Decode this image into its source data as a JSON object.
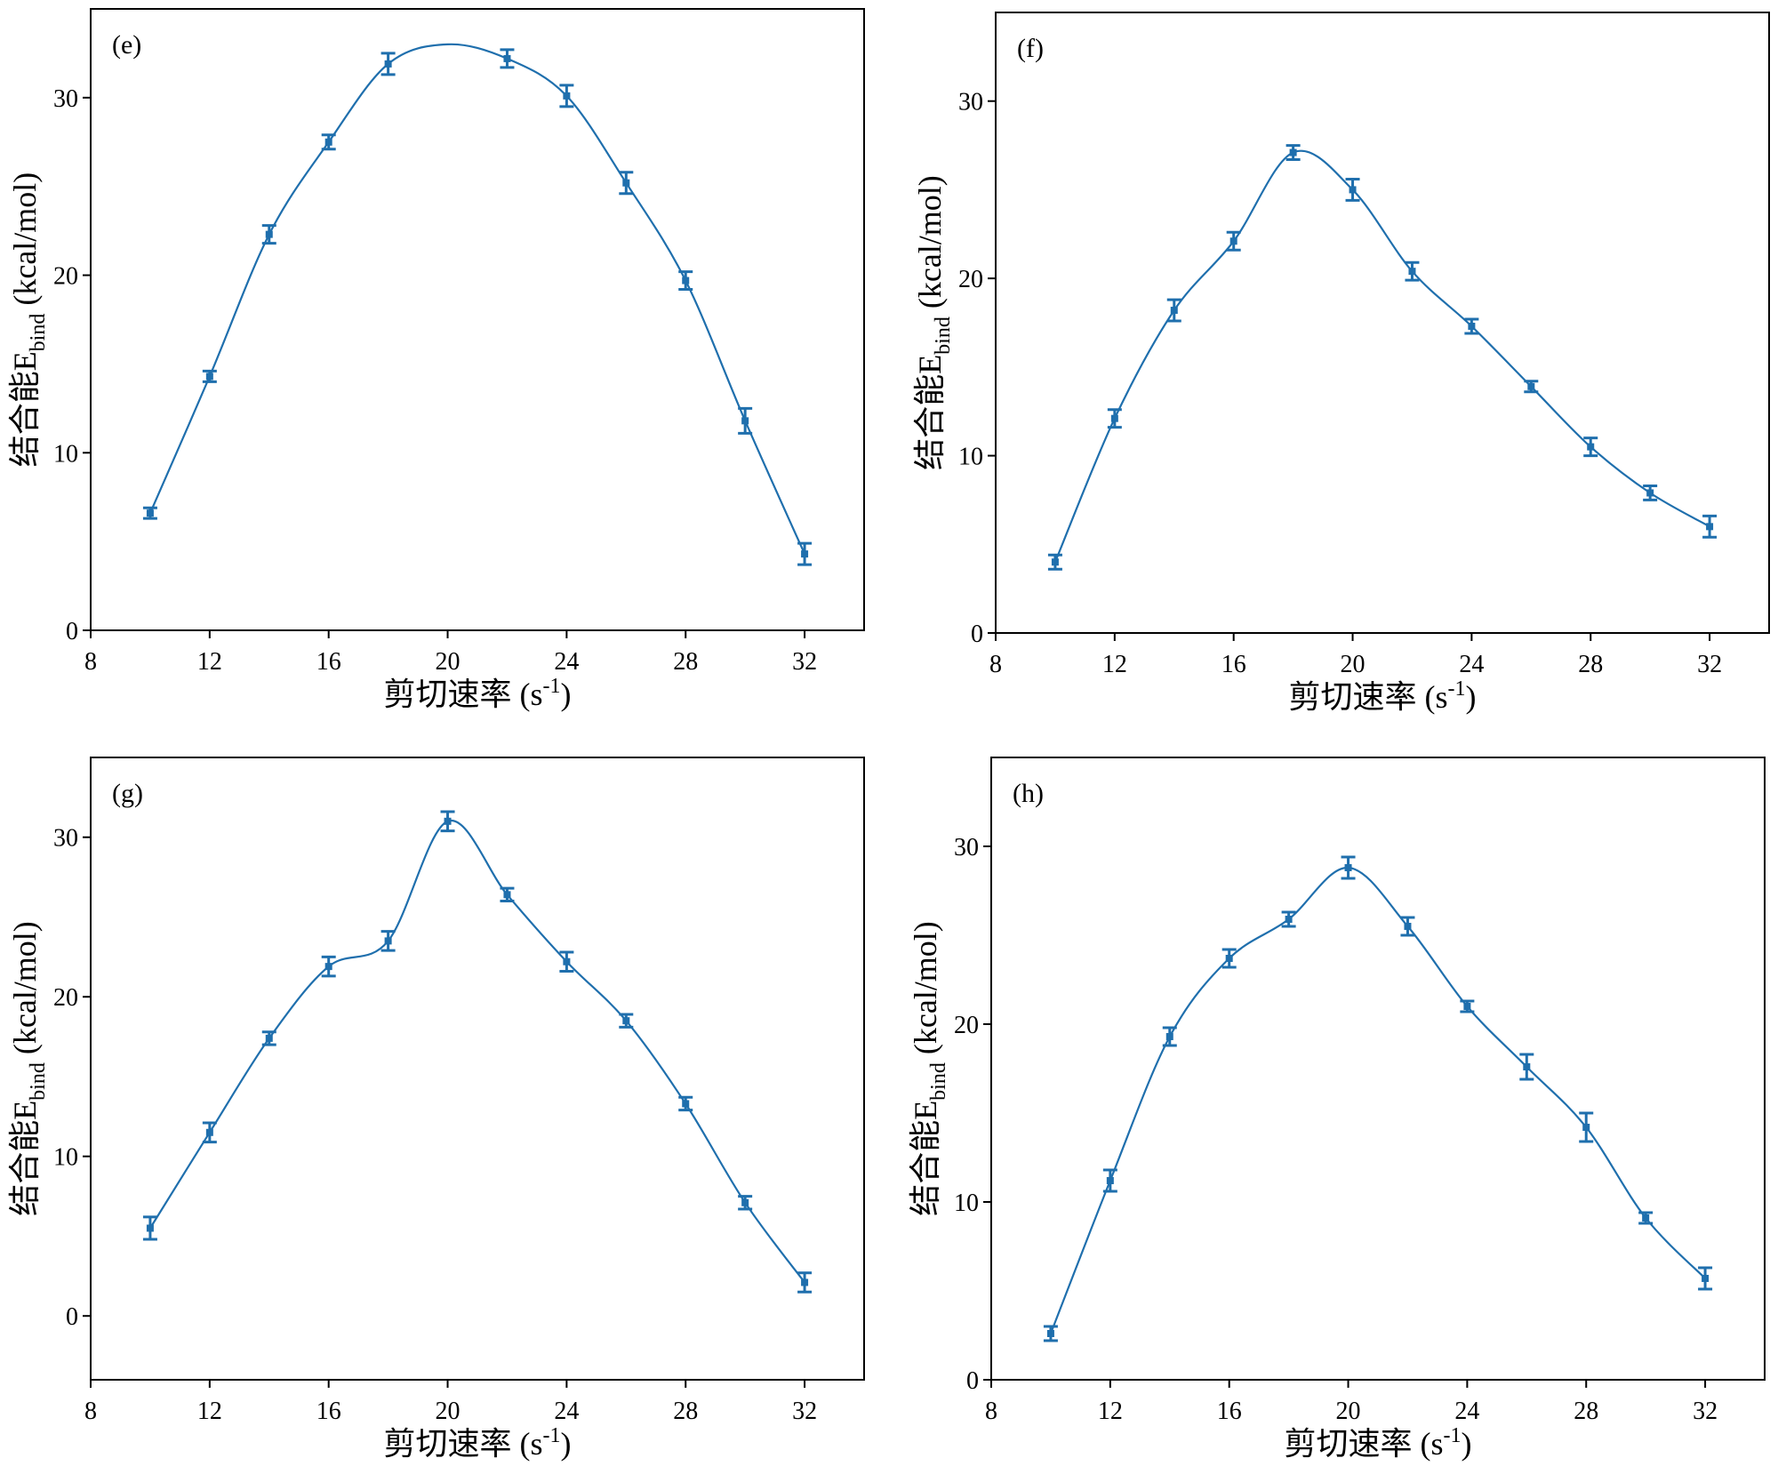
{
  "chart_data": [
    {
      "type": "line",
      "panel_label": "(e)",
      "xlabel_main": "剪切速率 (s",
      "xlabel_sup": "-1",
      "xlabel_end": ")",
      "ylabel_main": "结合能E",
      "ylabel_sub": "bind",
      "ylabel_end": " (kcal/mol)",
      "xlim": [
        8,
        34
      ],
      "ylim": [
        0,
        35
      ],
      "xticks": [
        8,
        12,
        16,
        20,
        24,
        28,
        32
      ],
      "yticks": [
        0,
        10,
        20,
        30
      ],
      "grid": false,
      "color": "#1f6fad",
      "x": [
        10,
        12,
        14,
        16,
        18,
        20,
        22,
        24,
        26,
        28,
        30,
        32
      ],
      "y": [
        6.6,
        14.3,
        22.3,
        27.5,
        31.9,
        33.0,
        32.2,
        30.1,
        25.2,
        19.7,
        11.8,
        4.3
      ],
      "error": [
        0.3,
        0.3,
        0.5,
        0.4,
        0.6,
        null,
        0.5,
        0.6,
        0.6,
        0.5,
        0.7,
        0.6
      ]
    },
    {
      "type": "line",
      "panel_label": "(f)",
      "xlabel_main": "剪切速率 (s",
      "xlabel_sup": "-1",
      "xlabel_end": ")",
      "ylabel_main": "结合能E",
      "ylabel_sub": "bind",
      "ylabel_end": " (kcal/mol)",
      "xlim": [
        8,
        34
      ],
      "ylim": [
        0,
        35
      ],
      "xticks": [
        8,
        12,
        16,
        20,
        24,
        28,
        32
      ],
      "yticks": [
        0,
        10,
        20,
        30
      ],
      "grid": false,
      "color": "#1f6fad",
      "x": [
        10,
        12,
        14,
        16,
        18,
        20,
        22,
        24,
        26,
        28,
        30,
        32
      ],
      "y": [
        4.0,
        12.1,
        18.2,
        22.1,
        27.1,
        25.0,
        20.4,
        17.3,
        13.9,
        10.5,
        7.9,
        6.0
      ],
      "error": [
        0.4,
        0.5,
        0.6,
        0.5,
        0.4,
        0.6,
        0.5,
        0.4,
        0.3,
        0.5,
        0.4,
        0.6
      ]
    },
    {
      "type": "line",
      "panel_label": "(g)",
      "xlabel_main": "剪切速率 (s",
      "xlabel_sup": "-1",
      "xlabel_end": ")",
      "ylabel_main": "结合能E",
      "ylabel_sub": "bind",
      "ylabel_end": " (kcal/mol)",
      "xlim": [
        8,
        34
      ],
      "ylim": [
        -4,
        35
      ],
      "xticks": [
        8,
        12,
        16,
        20,
        24,
        28,
        32
      ],
      "yticks": [
        0,
        10,
        20,
        30
      ],
      "grid": false,
      "color": "#1f6fad",
      "x": [
        10,
        12,
        14,
        16,
        18,
        20,
        22,
        24,
        26,
        28,
        30,
        32
      ],
      "y": [
        5.5,
        11.5,
        17.4,
        21.9,
        23.5,
        31.0,
        26.4,
        22.2,
        18.5,
        13.3,
        7.1,
        2.1
      ],
      "error": [
        0.7,
        0.6,
        0.4,
        0.6,
        0.6,
        0.6,
        0.4,
        0.6,
        0.4,
        0.4,
        0.4,
        0.6
      ]
    },
    {
      "type": "line",
      "panel_label": "(h)",
      "xlabel_main": "剪切速率 (s",
      "xlabel_sup": "-1",
      "xlabel_end": ")",
      "ylabel_main": "结合能E",
      "ylabel_sub": "bind",
      "ylabel_end": " (kcal/mol)",
      "xlim": [
        8,
        34
      ],
      "ylim": [
        0,
        35
      ],
      "xticks": [
        8,
        12,
        16,
        20,
        24,
        28,
        32
      ],
      "yticks": [
        0,
        10,
        20,
        30
      ],
      "grid": false,
      "color": "#1f6fad",
      "x": [
        10,
        12,
        14,
        16,
        18,
        20,
        22,
        24,
        26,
        28,
        30,
        32
      ],
      "y": [
        2.6,
        11.2,
        19.3,
        23.7,
        25.9,
        28.8,
        25.5,
        21.0,
        17.6,
        14.2,
        9.1,
        5.7
      ],
      "error": [
        0.4,
        0.6,
        0.5,
        0.5,
        0.4,
        0.6,
        0.5,
        0.3,
        0.7,
        0.8,
        0.3,
        0.6
      ]
    }
  ]
}
